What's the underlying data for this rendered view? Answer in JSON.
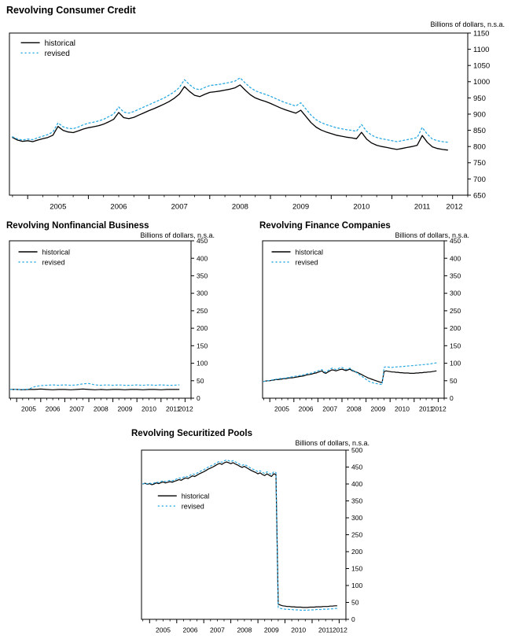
{
  "page": {
    "heading": "Revolving Consumer Credit"
  },
  "colors": {
    "historical": "#000000",
    "revised": "#29a9e1"
  },
  "chart_data": [
    {
      "type": "line",
      "title": "Revolving Consumer Credit",
      "unit_label": "Billions of dollars, n.s.a.",
      "ylim": [
        650,
        1150
      ],
      "ytick_step": 50,
      "xlim": [
        2004.7,
        2012.25
      ],
      "xticks": [
        2005,
        2006,
        2007,
        2008,
        2009,
        2010,
        2011,
        2012
      ],
      "grid": false,
      "legend_position": "top-left",
      "legend_pos": {
        "x": 0.025,
        "y": 0.06
      },
      "series": [
        {
          "name": "historical",
          "color": "#000000",
          "style": "solid",
          "x_start": 2004.75,
          "x_step": 0.0833333,
          "values": [
            828,
            820,
            816,
            818,
            815,
            820,
            824,
            828,
            835,
            862,
            850,
            845,
            843,
            848,
            854,
            858,
            861,
            864,
            869,
            876,
            884,
            905,
            889,
            886,
            890,
            897,
            904,
            911,
            917,
            924,
            931,
            939,
            949,
            962,
            985,
            970,
            958,
            954,
            961,
            967,
            969,
            971,
            974,
            977,
            981,
            990,
            974,
            960,
            950,
            944,
            939,
            933,
            926,
            919,
            913,
            908,
            903,
            912,
            893,
            874,
            860,
            851,
            845,
            840,
            835,
            832,
            829,
            827,
            824,
            844,
            823,
            811,
            804,
            800,
            797,
            794,
            791,
            794,
            797,
            800,
            804,
            834,
            813,
            799,
            794,
            791,
            789
          ]
        },
        {
          "name": "revised",
          "color": "#29a9e1",
          "style": "dotted",
          "x_start": 2004.75,
          "x_step": 0.0833333,
          "values": [
            830,
            823,
            820,
            823,
            821,
            827,
            832,
            837,
            845,
            873,
            861,
            856,
            855,
            860,
            867,
            872,
            875,
            879,
            884,
            892,
            900,
            922,
            906,
            903,
            908,
            915,
            922,
            929,
            936,
            943,
            950,
            959,
            969,
            982,
            1006,
            991,
            979,
            975,
            982,
            988,
            990,
            992,
            995,
            998,
            1002,
            1012,
            996,
            982,
            972,
            966,
            961,
            955,
            948,
            941,
            935,
            930,
            925,
            935,
            916,
            897,
            883,
            874,
            868,
            863,
            858,
            855,
            852,
            850,
            847,
            868,
            847,
            835,
            828,
            824,
            821,
            818,
            815,
            818,
            821,
            824,
            828,
            859,
            838,
            823,
            818,
            815,
            813
          ]
        }
      ]
    },
    {
      "type": "line",
      "title": "Revolving Nonfinancial Business",
      "unit_label": "Billions of dollars, n.s.a.",
      "ylim": [
        0,
        450
      ],
      "ytick_step": 50,
      "xlim": [
        2004.7,
        2012.25
      ],
      "xticks": [
        2005,
        2006,
        2007,
        2008,
        2009,
        2010,
        2011,
        2012
      ],
      "grid": false,
      "legend_position": "top-left",
      "legend_pos": {
        "x": 0.05,
        "y": 0.07
      },
      "series": [
        {
          "name": "historical",
          "color": "#000000",
          "style": "solid",
          "x_start": 2004.75,
          "x_step": 0.25,
          "values": [
            25,
            25,
            24,
            25,
            25,
            26,
            25,
            24,
            25,
            25,
            24,
            25,
            26,
            25,
            24,
            25,
            24,
            25,
            25,
            24,
            25,
            25,
            24,
            25,
            25,
            24,
            25,
            25,
            25
          ]
        },
        {
          "name": "revised",
          "color": "#29a9e1",
          "style": "dotted",
          "x_start": 2004.75,
          "x_step": 0.25,
          "values": [
            25,
            25,
            25,
            26,
            33,
            36,
            37,
            38,
            37,
            38,
            37,
            38,
            41,
            42,
            38,
            37,
            38,
            37,
            38,
            37,
            37,
            38,
            37,
            38,
            37,
            38,
            37,
            37,
            38
          ]
        }
      ]
    },
    {
      "type": "line",
      "title": "Revolving Finance Companies",
      "unit_label": "Billions of dollars, n.s.a.",
      "ylim": [
        0,
        450
      ],
      "ytick_step": 50,
      "xlim": [
        2004.7,
        2012.25
      ],
      "xticks": [
        2005,
        2006,
        2007,
        2008,
        2009,
        2010,
        2011,
        2012
      ],
      "grid": false,
      "legend_position": "top-left",
      "legend_pos": {
        "x": 0.05,
        "y": 0.07
      },
      "series": [
        {
          "name": "historical",
          "color": "#000000",
          "style": "solid",
          "x_start": 2004.75,
          "x_step": 0.0833333,
          "values": [
            48,
            49,
            50,
            50,
            51,
            52,
            53,
            53,
            54,
            55,
            56,
            56,
            57,
            58,
            58,
            59,
            60,
            61,
            62,
            63,
            64,
            66,
            67,
            68,
            69,
            71,
            72,
            74,
            76,
            78,
            73,
            71,
            75,
            78,
            81,
            80,
            78,
            80,
            82,
            83,
            81,
            79,
            81,
            83,
            79,
            77,
            75,
            73,
            70,
            67,
            64,
            61,
            58,
            56,
            54,
            52,
            50,
            48,
            46,
            44,
            76,
            78,
            77,
            76,
            75,
            75,
            74,
            74,
            73,
            73,
            72,
            72,
            72,
            71,
            71,
            71,
            72,
            72,
            73,
            73,
            74,
            74,
            75,
            75,
            76,
            77,
            78
          ]
        },
        {
          "name": "revised",
          "color": "#29a9e1",
          "style": "dotted",
          "x_start": 2004.75,
          "x_step": 0.0833333,
          "values": [
            48,
            49,
            50,
            51,
            52,
            53,
            54,
            55,
            56,
            57,
            57,
            58,
            59,
            60,
            61,
            62,
            63,
            64,
            65,
            66,
            67,
            69,
            70,
            71,
            72,
            74,
            76,
            78,
            80,
            82,
            76,
            74,
            79,
            82,
            86,
            84,
            82,
            84,
            87,
            88,
            85,
            82,
            84,
            86,
            81,
            78,
            74,
            70,
            66,
            62,
            58,
            54,
            50,
            47,
            45,
            43,
            42,
            41,
            40,
            39,
            88,
            90,
            89,
            88,
            88,
            89,
            89,
            90,
            90,
            91,
            91,
            92,
            92,
            93,
            93,
            94,
            94,
            95,
            95,
            96,
            96,
            97,
            97,
            98,
            99,
            100,
            101
          ]
        }
      ]
    },
    {
      "type": "line",
      "title": "Revolving Securitized Pools",
      "unit_label": "Billions of dollars, n.s.a.",
      "ylim": [
        0,
        500
      ],
      "ytick_step": 50,
      "xlim": [
        2004.7,
        2012.25
      ],
      "xticks": [
        2005,
        2006,
        2007,
        2008,
        2009,
        2010,
        2011,
        2012
      ],
      "grid": false,
      "legend_position": "middle-left",
      "legend_pos": {
        "x": 0.08,
        "y": 0.27
      },
      "series": [
        {
          "name": "historical",
          "color": "#000000",
          "style": "solid",
          "x_start": 2004.75,
          "x_step": 0.0833333,
          "values": [
            400,
            402,
            399,
            401,
            398,
            400,
            403,
            401,
            404,
            406,
            403,
            405,
            407,
            405,
            408,
            410,
            413,
            411,
            415,
            418,
            416,
            420,
            424,
            422,
            426,
            430,
            433,
            436,
            440,
            444,
            447,
            450,
            454,
            458,
            461,
            458,
            462,
            465,
            463,
            460,
            463,
            459,
            456,
            452,
            449,
            452,
            448,
            444,
            440,
            437,
            434,
            430,
            433,
            428,
            425,
            430,
            426,
            422,
            430,
            428,
            45,
            42,
            40,
            39,
            38,
            38,
            37,
            37,
            36,
            36,
            36,
            35,
            35,
            35,
            36,
            36,
            36,
            37,
            37,
            37,
            38,
            38,
            38,
            39,
            39,
            40,
            40
          ]
        },
        {
          "name": "revised",
          "color": "#29a9e1",
          "style": "dotted",
          "x_start": 2004.75,
          "x_step": 0.0833333,
          "values": [
            400,
            403,
            400,
            403,
            400,
            403,
            406,
            404,
            407,
            410,
            407,
            409,
            411,
            409,
            412,
            415,
            418,
            416,
            420,
            423,
            421,
            426,
            430,
            428,
            432,
            436,
            439,
            442,
            446,
            450,
            453,
            456,
            460,
            464,
            467,
            464,
            468,
            471,
            469,
            466,
            469,
            465,
            462,
            458,
            455,
            458,
            454,
            450,
            446,
            443,
            440,
            436,
            439,
            434,
            431,
            436,
            432,
            428,
            436,
            434,
            35,
            32,
            31,
            30,
            30,
            29,
            29,
            28,
            28,
            28,
            27,
            27,
            27,
            27,
            28,
            28,
            28,
            29,
            29,
            29,
            30,
            30,
            30,
            31,
            31,
            32,
            32
          ]
        }
      ]
    }
  ]
}
